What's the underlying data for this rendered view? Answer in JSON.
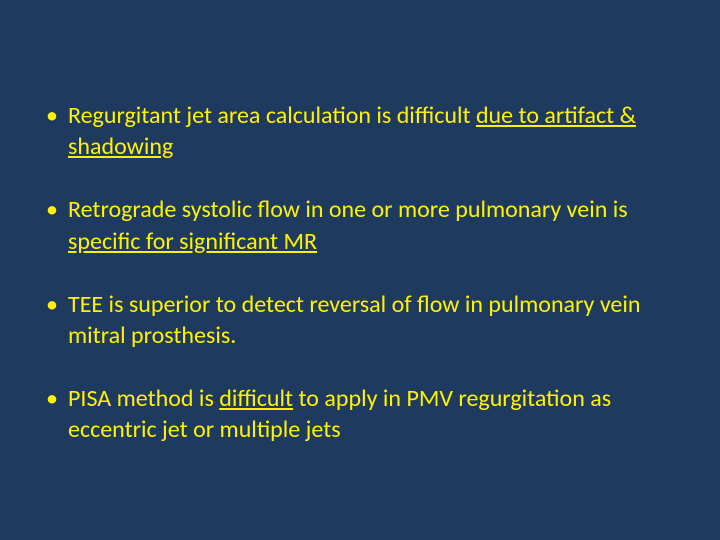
{
  "slide": {
    "background_color": "#1f3a5f",
    "text_color": "#fef200",
    "font_family": "Calibri",
    "font_size_pt": 18,
    "bullets": [
      {
        "segments": [
          {
            "text": "Regurgitant jet area calculation is difficult ",
            "underline": false
          },
          {
            "text": "due to artifact & shadowing",
            "underline": true
          }
        ]
      },
      {
        "segments": [
          {
            "text": "Retrograde systolic flow in one or more pulmonary vein is ",
            "underline": false
          },
          {
            "text": "specific for significant MR",
            "underline": true
          }
        ]
      },
      {
        "segments": [
          {
            "text": "TEE  is superior to detect reversal of flow in pulmonary vein mitral prosthesis.",
            "underline": false
          }
        ]
      },
      {
        "segments": [
          {
            "text": "PISA method is ",
            "underline": false
          },
          {
            "text": "difficult",
            "underline": true
          },
          {
            "text": " to apply in PMV regurgitation as eccentric jet or multiple jets",
            "underline": false
          }
        ]
      }
    ]
  }
}
